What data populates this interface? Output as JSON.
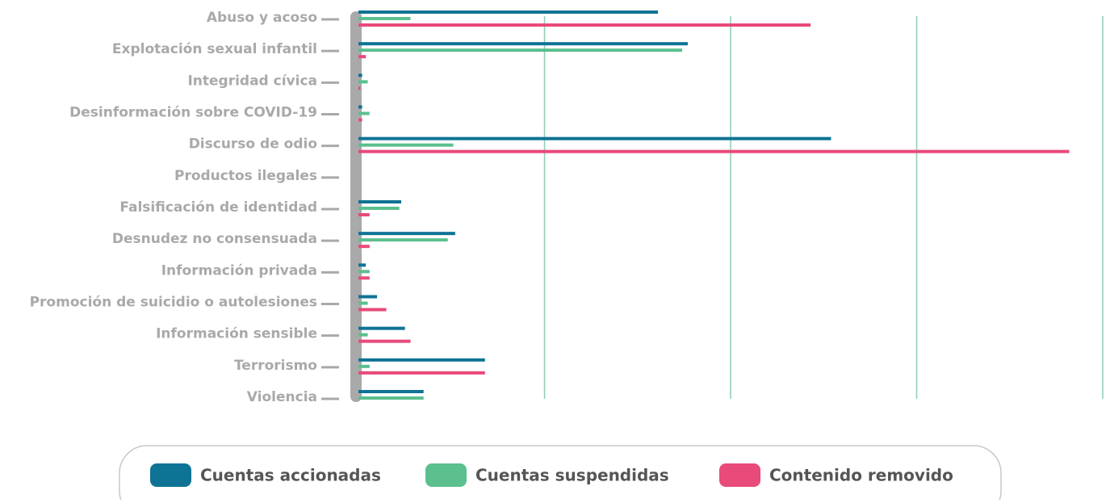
{
  "chart_data": {
    "type": "hbar",
    "categories": [
      "Abuso y acoso",
      "Explotación sexual infantil",
      "Integridad cívica",
      "Desinformación sobre COVID-19",
      "Discurso de odio",
      "Productos ilegales",
      "Falsificación de identidad",
      "Desnudez no consensuada",
      "Información privada",
      "Promoción de suicidio o autolesiones",
      "Información sensible",
      "Terrorismo",
      "Violencia"
    ],
    "series": [
      {
        "name": "Cuentas accionadas",
        "color": "#0f7396",
        "values": [
          1.61,
          1.77,
          0.02,
          0.02,
          2.54,
          null,
          0.23,
          0.52,
          0.04,
          0.1,
          0.25,
          0.68,
          0.35
        ]
      },
      {
        "name": "Cuentas suspendidas",
        "color": "#5bbf8e",
        "values": [
          0.28,
          1.74,
          0.05,
          0.06,
          0.51,
          null,
          0.22,
          0.48,
          0.06,
          0.05,
          0.05,
          0.06,
          0.35
        ]
      },
      {
        "name": "Contenido removido",
        "color": "#e84a7a",
        "values": [
          2.43,
          0.04,
          0.01,
          0.02,
          3.82,
          null,
          0.06,
          0.06,
          0.06,
          0.15,
          0.28,
          0.68,
          null
        ]
      }
    ],
    "xlim": [
      0,
      4
    ],
    "xticks": [
      1,
      2,
      3,
      4
    ],
    "grid": true,
    "legend": "bottom"
  }
}
